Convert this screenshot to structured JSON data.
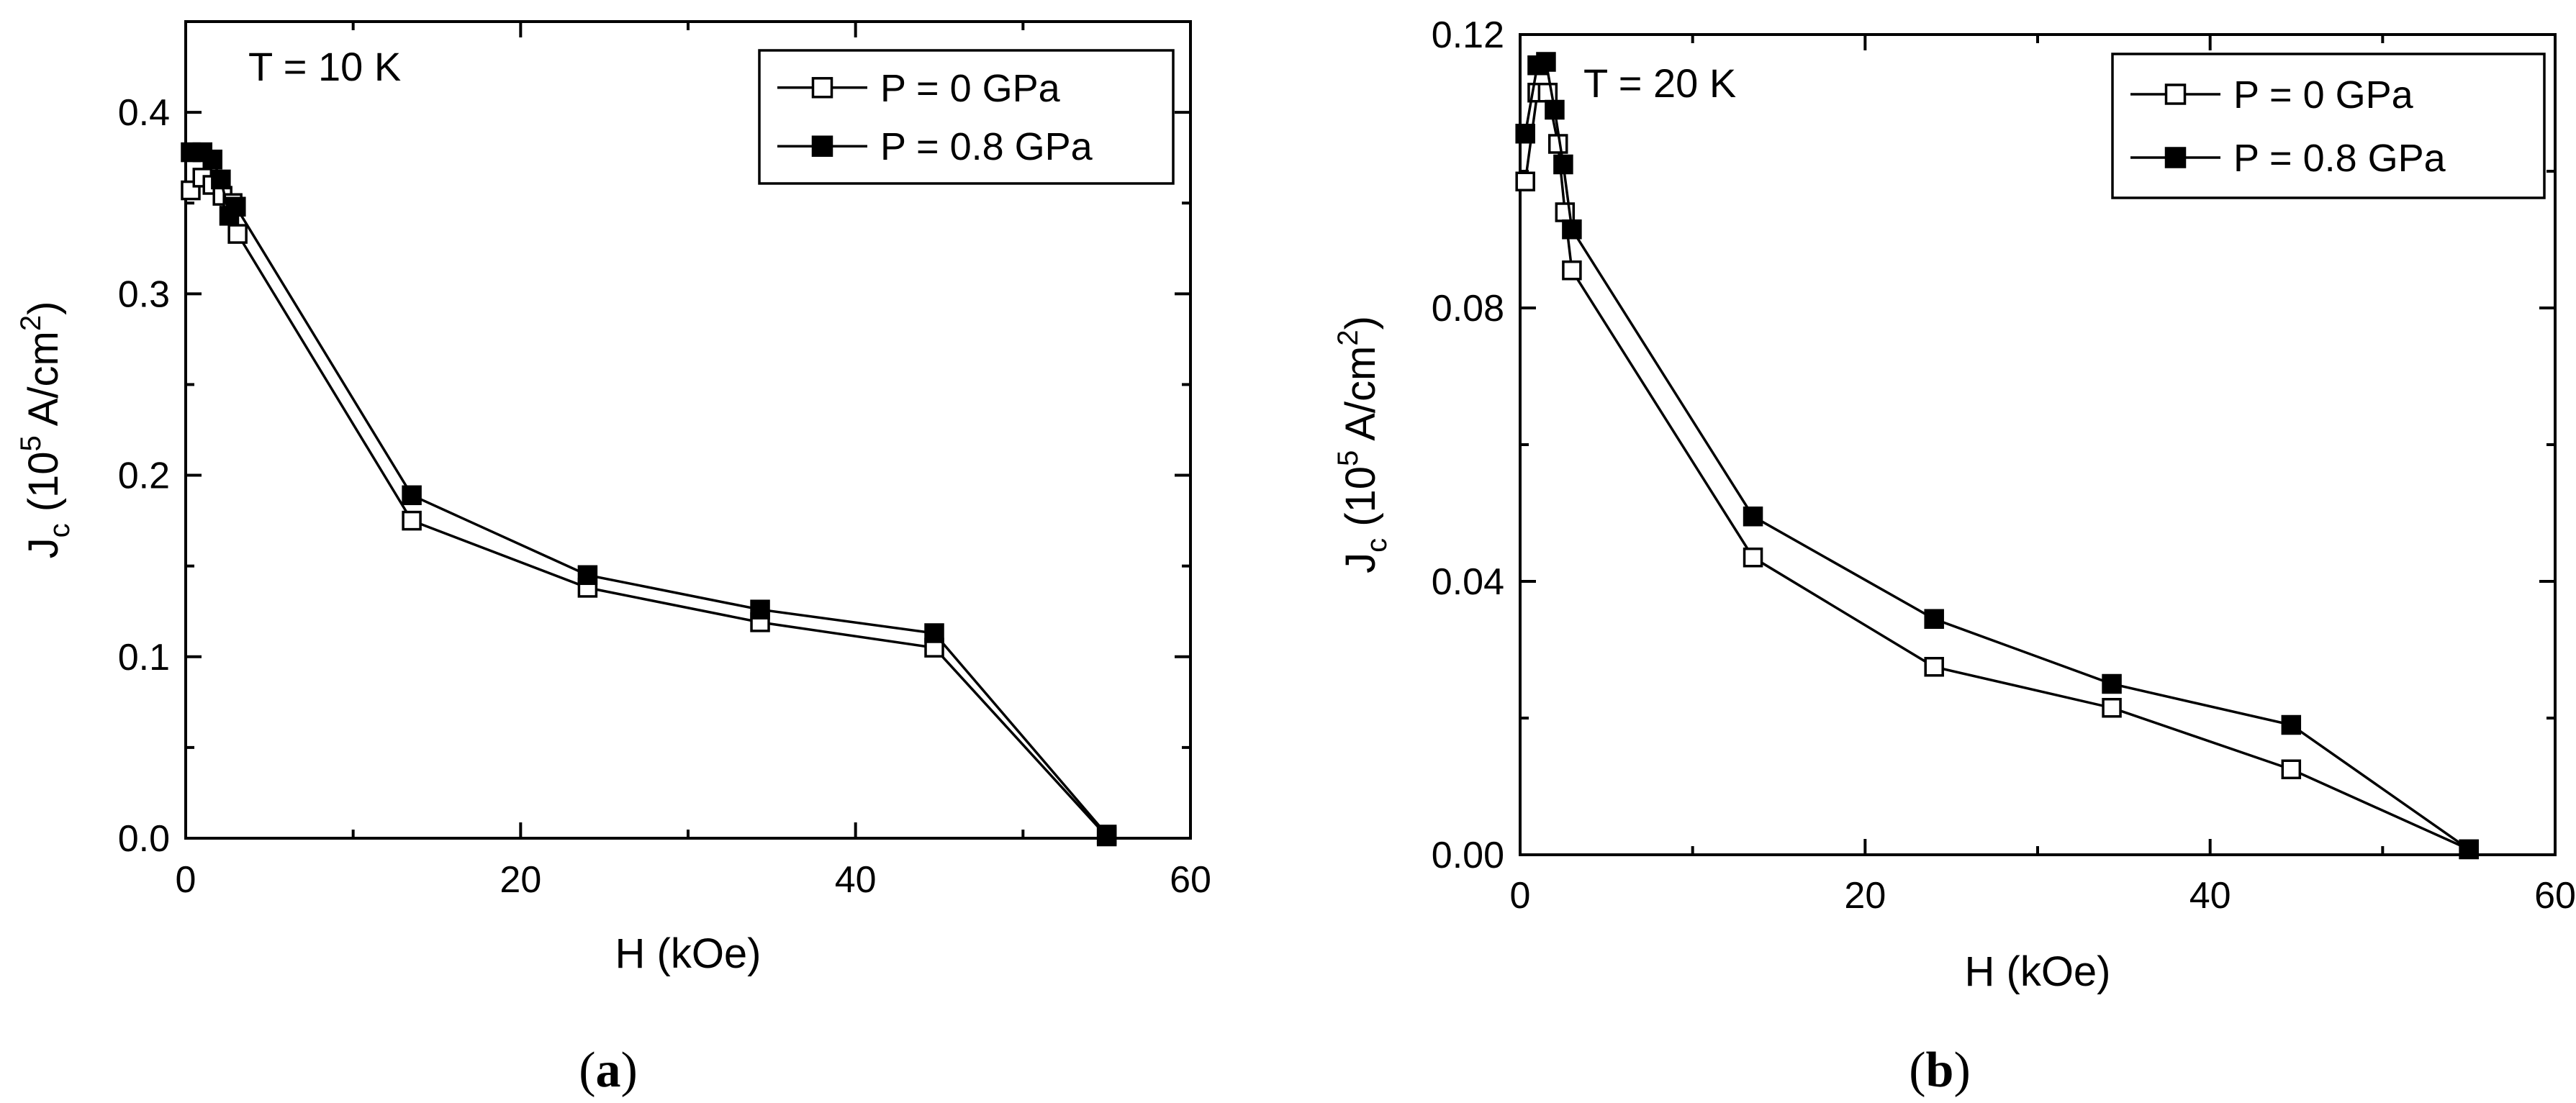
{
  "chart_data": [
    {
      "type": "line",
      "panel_label": "a",
      "annotation": "T = 10 K",
      "xlabel": "H (kOe)",
      "ylabel": {
        "prefix": "J",
        "sub": "c",
        "mid": " (10",
        "sup1": "5",
        "unit": " A/cm",
        "sup2": "2",
        "end": ")"
      },
      "xlim": [
        0,
        60
      ],
      "ylim": [
        0,
        0.45
      ],
      "xticks": [
        0,
        20,
        40,
        60
      ],
      "xtick_labels": [
        "0",
        "20",
        "40",
        "60"
      ],
      "yticks": [
        0.0,
        0.1,
        0.2,
        0.3,
        0.4
      ],
      "ytick_labels": [
        "0.0",
        "0.1",
        "0.2",
        "0.3",
        "0.4"
      ],
      "legend_position": "top-right",
      "grid": false,
      "series": [
        {
          "name": "P = 0 GPa",
          "marker": "open-square",
          "x": [
            0.3,
            1.0,
            1.6,
            2.2,
            2.8,
            3.1,
            13.5,
            24.0,
            34.3,
            44.7,
            55.0
          ],
          "y": [
            0.357,
            0.364,
            0.36,
            0.354,
            0.35,
            0.333,
            0.175,
            0.138,
            0.119,
            0.105,
            0.001
          ]
        },
        {
          "name": "P = 0.8 GPa",
          "marker": "filled-square",
          "x": [
            0.3,
            1.0,
            1.6,
            2.1,
            2.6,
            3.0,
            13.5,
            24.0,
            34.3,
            44.7,
            55.0
          ],
          "y": [
            0.378,
            0.378,
            0.374,
            0.363,
            0.343,
            0.348,
            0.189,
            0.145,
            0.126,
            0.113,
            0.002
          ]
        }
      ]
    },
    {
      "type": "line",
      "panel_label": "b",
      "annotation": "T = 20 K",
      "xlabel": "H (kOe)",
      "ylabel": {
        "prefix": "J",
        "sub": "c",
        "mid": " (10",
        "sup1": "5",
        "unit": " A/cm",
        "sup2": "2",
        "end": ")"
      },
      "xlim": [
        0,
        60
      ],
      "ylim": [
        0,
        0.12
      ],
      "xticks": [
        0,
        20,
        40,
        60
      ],
      "xtick_labels": [
        "0",
        "20",
        "40",
        "60"
      ],
      "yticks": [
        0.0,
        0.04,
        0.08,
        0.12
      ],
      "ytick_labels": [
        "0.00",
        "0.04",
        "0.08",
        "0.12"
      ],
      "legend_position": "top-right",
      "grid": false,
      "series": [
        {
          "name": "P = 0 GPa",
          "marker": "open-square",
          "x": [
            0.3,
            1.0,
            1.6,
            2.2,
            2.6,
            3.0,
            13.5,
            24.0,
            34.3,
            44.7,
            55.0
          ],
          "y": [
            0.0985,
            0.1115,
            0.1115,
            0.104,
            0.094,
            0.0855,
            0.0435,
            0.0275,
            0.0215,
            0.0125,
            0.0008
          ]
        },
        {
          "name": "P = 0.8 GPa",
          "marker": "filled-square",
          "x": [
            0.3,
            1.0,
            1.5,
            2.0,
            2.5,
            3.0,
            13.5,
            24.0,
            34.3,
            44.7,
            55.0
          ],
          "y": [
            0.1055,
            0.1155,
            0.116,
            0.109,
            0.101,
            0.0915,
            0.0495,
            0.0345,
            0.025,
            0.019,
            0.0008
          ]
        }
      ]
    }
  ]
}
